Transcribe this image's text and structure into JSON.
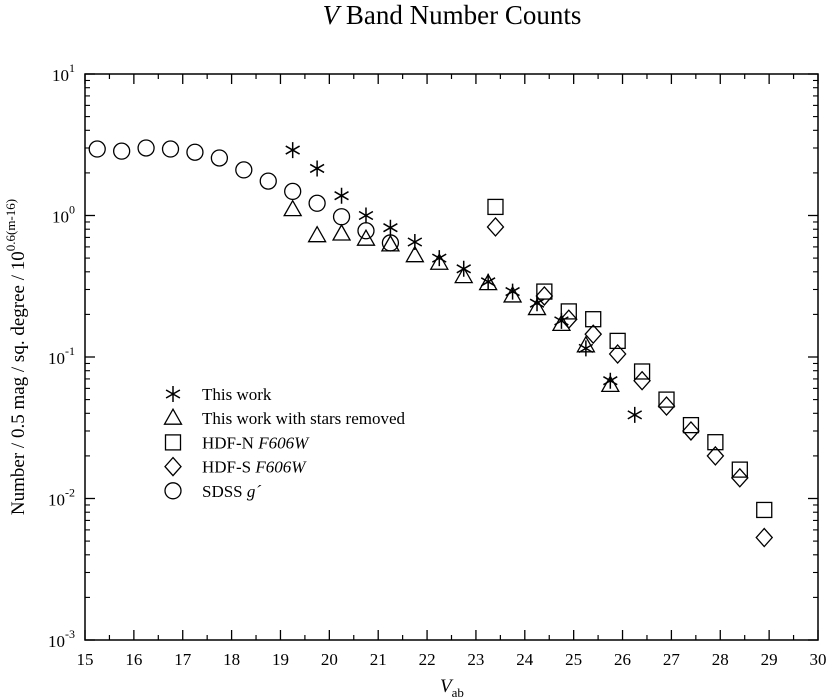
{
  "chart_data": {
    "type": "scatter",
    "title": {
      "italic": "V",
      "rest": " Band Number Counts"
    },
    "xlabel": {
      "main": "V",
      "sub": "ab"
    },
    "ylabel": {
      "main": "Number / 0.5 mag / sq. degree / 10",
      "sup": "0.6(m-16)"
    },
    "xlim": [
      15,
      30
    ],
    "ylim": [
      0.001,
      10
    ],
    "yscale": "log",
    "grid": false,
    "legend_position": "lower-left",
    "x_ticks": [
      {
        "v": 15,
        "t": "15"
      },
      {
        "v": 16,
        "t": "16"
      },
      {
        "v": 17,
        "t": "17"
      },
      {
        "v": 18,
        "t": "18"
      },
      {
        "v": 19,
        "t": "19"
      },
      {
        "v": 20,
        "t": "20"
      },
      {
        "v": 21,
        "t": "21"
      },
      {
        "v": 22,
        "t": "22"
      },
      {
        "v": 23,
        "t": "23"
      },
      {
        "v": 24,
        "t": "24"
      },
      {
        "v": 25,
        "t": "25"
      },
      {
        "v": 26,
        "t": "26"
      },
      {
        "v": 27,
        "t": "27"
      },
      {
        "v": 28,
        "t": "28"
      },
      {
        "v": 29,
        "t": "29"
      },
      {
        "v": 30,
        "t": "30"
      }
    ],
    "y_ticks": [
      {
        "v": 0.001,
        "base": "10",
        "exp": "-3"
      },
      {
        "v": 0.01,
        "base": "10",
        "exp": "-2"
      },
      {
        "v": 0.1,
        "base": "10",
        "exp": "-1"
      },
      {
        "v": 1,
        "base": "10",
        "exp": "0"
      },
      {
        "v": 10,
        "base": "10",
        "exp": "1"
      }
    ],
    "series": [
      {
        "name": "This work",
        "marker": "asterisk",
        "x": [
          19.25,
          19.75,
          20.25,
          20.75,
          21.25,
          21.75,
          22.25,
          22.75,
          23.25,
          23.75,
          24.25,
          24.75,
          25.25,
          25.75,
          26.25
        ],
        "y": [
          2.9,
          2.15,
          1.38,
          1.0,
          0.82,
          0.65,
          0.5,
          0.42,
          0.34,
          0.29,
          0.24,
          0.18,
          0.115,
          0.068,
          0.039
        ]
      },
      {
        "name": "This work with stars removed",
        "marker": "triangle",
        "x": [
          19.25,
          19.75,
          20.25,
          20.75,
          21.25,
          21.75,
          22.25,
          22.75,
          23.25,
          23.75,
          24.25,
          24.75,
          25.25,
          25.75
        ],
        "y": [
          1.1,
          0.72,
          0.74,
          0.68,
          0.62,
          0.52,
          0.46,
          0.37,
          0.33,
          0.27,
          0.22,
          0.17,
          0.12,
          0.063
        ]
      },
      {
        "name": "HDF-N",
        "name_italic": "F606W",
        "marker": "square",
        "x": [
          23.4,
          24.4,
          24.9,
          25.4,
          25.9,
          26.4,
          26.9,
          27.4,
          27.9,
          28.4,
          28.9
        ],
        "y": [
          1.15,
          0.29,
          0.21,
          0.185,
          0.13,
          0.079,
          0.05,
          0.033,
          0.025,
          0.016,
          0.0083
        ]
      },
      {
        "name": "HDF-S",
        "name_italic": "F606W",
        "marker": "diamond",
        "x": [
          23.4,
          24.4,
          24.9,
          25.4,
          25.9,
          26.4,
          26.9,
          27.4,
          27.9,
          28.4,
          28.9
        ],
        "y": [
          0.83,
          0.27,
          0.185,
          0.145,
          0.105,
          0.068,
          0.045,
          0.03,
          0.02,
          0.014,
          0.0053
        ]
      },
      {
        "name": "SDSS",
        "name_italic": "g´",
        "marker": "circle",
        "x": [
          15.25,
          15.75,
          16.25,
          16.75,
          17.25,
          17.75,
          18.25,
          18.75,
          19.25,
          19.75,
          20.25,
          20.75,
          21.25
        ],
        "y": [
          2.95,
          2.85,
          3.0,
          2.95,
          2.8,
          2.55,
          2.1,
          1.75,
          1.48,
          1.22,
          0.98,
          0.78,
          0.64
        ]
      }
    ]
  }
}
